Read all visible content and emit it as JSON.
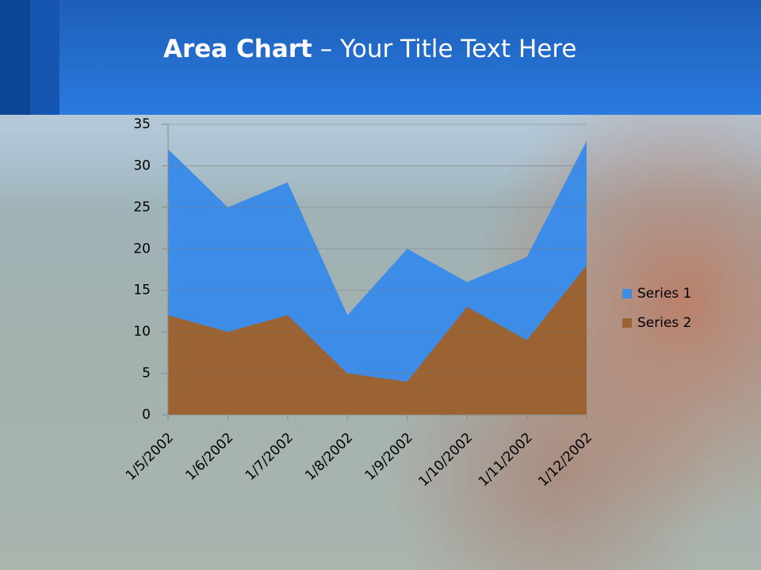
{
  "chart_data": {
    "type": "area",
    "title": "Area Chart",
    "subtitle": "– Your Title Text Here",
    "categories": [
      "1/5/2002",
      "1/6/2002",
      "1/7/2002",
      "1/8/2002",
      "1/9/2002",
      "1/10/2002",
      "1/11/2002",
      "1/12/2002"
    ],
    "series": [
      {
        "name": "Series 1",
        "color": "#3d8ce8",
        "values": [
          32,
          25,
          28,
          12,
          20,
          16,
          19,
          33
        ]
      },
      {
        "name": "Series 2",
        "color": "#9a6331",
        "values": [
          12,
          10,
          12,
          5,
          4,
          13,
          9,
          18
        ]
      }
    ],
    "ylim": [
      0,
      35
    ],
    "yticks": [
      0,
      5,
      10,
      15,
      20,
      25,
      30,
      35
    ],
    "grid": true,
    "legend": "right"
  }
}
